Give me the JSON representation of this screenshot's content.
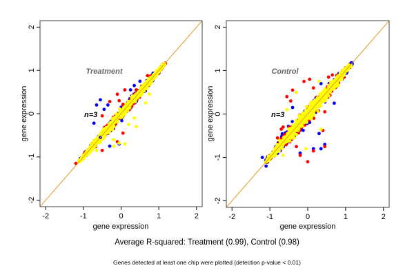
{
  "caption": "Average R-squared: Treatment (0.99), Control (0.98)",
  "footnote": "Genes detected at least one chip were plotted (detection p-value < 0.01)",
  "colors": {
    "series": [
      "#0000ff",
      "#ff0000",
      "#ffff00"
    ],
    "diagonal": "#e69a1f",
    "label": "#666666"
  },
  "chart_data": [
    {
      "type": "scatter",
      "title": "Treatment",
      "annotation": "n=3",
      "xlabel": "gene expression",
      "ylabel": "gene expression",
      "xlim": [
        -2.15,
        2.15
      ],
      "ylim": [
        -2.15,
        2.15
      ],
      "xticks": [
        "-2",
        "-1",
        "0",
        "1",
        "2"
      ],
      "yticks": [
        "-2",
        "-1",
        "0",
        "1",
        "2"
      ],
      "grid": false,
      "reference_line": "y = x",
      "core_range": [
        -1.1,
        1.15
      ],
      "series": [
        {
          "color": "#0000ff",
          "points": [
            [
              -0.55,
              0.32
            ],
            [
              -0.65,
              0.2
            ],
            [
              -0.72,
              -0.22
            ],
            [
              -0.45,
              0.1
            ],
            [
              -0.35,
              0.2
            ],
            [
              0.5,
              0.75
            ],
            [
              0.35,
              0.65
            ],
            [
              -0.05,
              -0.7
            ],
            [
              -0.55,
              -0.55
            ],
            [
              -0.3,
              -0.75
            ],
            [
              0.25,
              0.55
            ]
          ]
        },
        {
          "color": "#ff0000",
          "points": [
            [
              -0.05,
              0.3
            ],
            [
              -0.3,
              0.28
            ],
            [
              -0.1,
              0.45
            ],
            [
              -0.5,
              -0.05
            ],
            [
              0.7,
              0.88
            ],
            [
              0.1,
              0.55
            ],
            [
              -0.5,
              -0.85
            ],
            [
              -0.1,
              -0.65
            ],
            [
              0.05,
              -0.45
            ],
            [
              -1.2,
              -1.15
            ],
            [
              0.4,
              0.55
            ]
          ]
        },
        {
          "color": "#ffff00",
          "points": [
            [
              0.75,
              0.45
            ],
            [
              0.65,
              0.25
            ],
            [
              0.35,
              -0.1
            ],
            [
              0.4,
              -0.3
            ],
            [
              0.2,
              -0.25
            ],
            [
              -0.2,
              -0.6
            ],
            [
              -0.05,
              -0.68
            ],
            [
              0.1,
              -0.7
            ],
            [
              -0.2,
              -0.75
            ],
            [
              -0.65,
              -0.85
            ]
          ]
        }
      ]
    },
    {
      "type": "scatter",
      "title": "Control",
      "annotation": "n=3",
      "xlabel": "gene expression",
      "ylabel": "gene expression",
      "xlim": [
        -2.15,
        2.15
      ],
      "ylim": [
        -2.15,
        2.15
      ],
      "xticks": [
        "-2",
        "-1",
        "0",
        "1",
        "2"
      ],
      "yticks": [
        "-2",
        "-1",
        "0",
        "1",
        "2"
      ],
      "grid": false,
      "reference_line": "y = x",
      "core_range": [
        -1.1,
        1.15
      ],
      "series": [
        {
          "color": "#0000ff",
          "points": [
            [
              -0.4,
              0.15
            ],
            [
              -1.2,
              -1.0
            ],
            [
              -1.1,
              -1.2
            ],
            [
              0.15,
              -0.8
            ],
            [
              0.35,
              -0.8
            ],
            [
              0.45,
              -0.7
            ],
            [
              -0.2,
              -0.9
            ],
            [
              0.3,
              -0.45
            ],
            [
              1.15,
              1.18
            ],
            [
              0.7,
              0.25
            ],
            [
              0.35,
              0.7
            ]
          ]
        },
        {
          "color": "#ff0000",
          "points": [
            [
              0,
              -1.1
            ],
            [
              0.45,
              -0.75
            ],
            [
              0.15,
              -0.85
            ],
            [
              -0.55,
              0.4
            ],
            [
              -0.65,
              -0.3
            ],
            [
              -0.8,
              -0.55
            ],
            [
              -0.1,
              0.75
            ],
            [
              0.05,
              0.8
            ],
            [
              0.15,
              0.6
            ],
            [
              -0.4,
              0.55
            ],
            [
              0.45,
              0.05
            ],
            [
              0.55,
              0.85
            ],
            [
              -0.2,
              -0.95
            ],
            [
              -0.7,
              -0.35
            ],
            [
              0.4,
              -0.38
            ],
            [
              -0.45,
              0.3
            ],
            [
              0.65,
              0.9
            ],
            [
              -0.3,
              -0.75
            ]
          ]
        },
        {
          "color": "#ffff00",
          "points": [
            [
              -0.3,
              0.5
            ],
            [
              -0.5,
              -0.35
            ],
            [
              -0.65,
              -0.95
            ],
            [
              -0.1,
              -0.2
            ],
            [
              0.35,
              -0.35
            ],
            [
              -0.05,
              -0.8
            ],
            [
              -0.35,
              -0.25
            ],
            [
              0.3,
              0.75
            ],
            [
              -0.55,
              0.1
            ]
          ]
        }
      ]
    }
  ]
}
